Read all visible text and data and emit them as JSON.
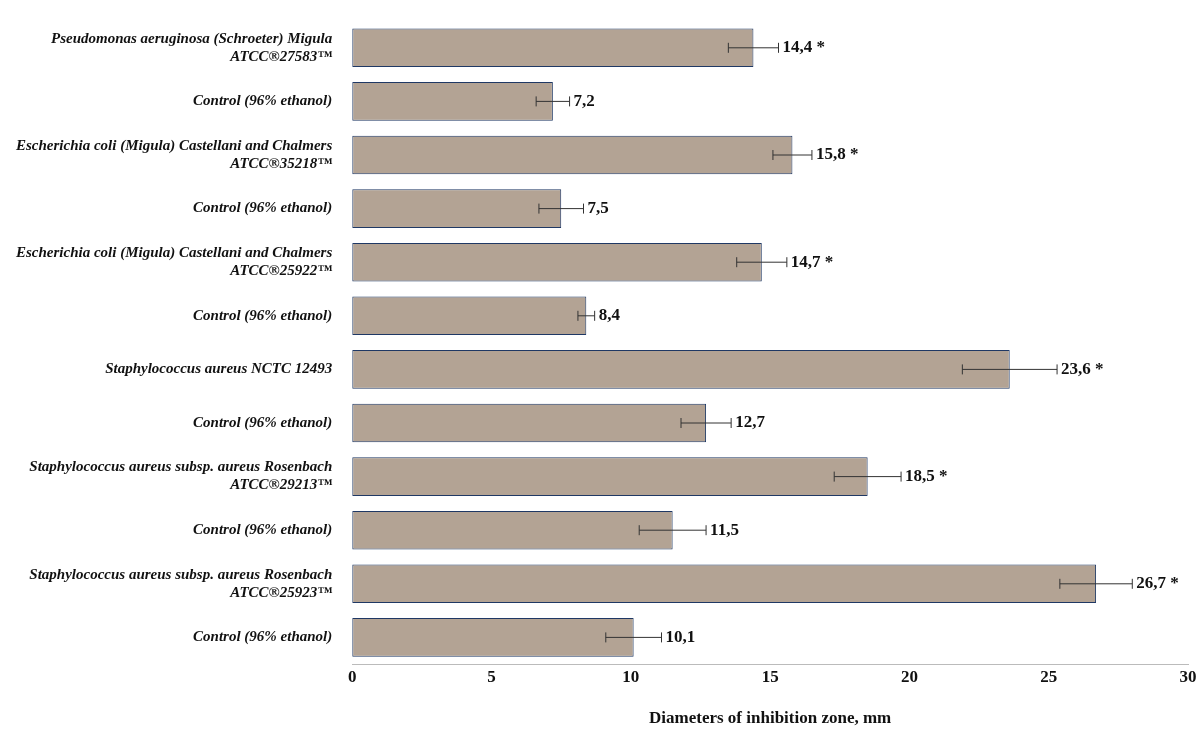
{
  "chart_data": {
    "type": "bar",
    "orientation": "horizontal",
    "xlabel": "Diameters of inhibition zone, mm",
    "categories": [
      "Pseudomonas aeruginosa (Schroeter) Migula ATCC®27583™",
      "Control (96% ethanol)",
      "Escherichia coli (Migula) Castellani and Chalmers ATCC®35218™",
      "Control (96% ethanol)",
      "Escherichia coli (Migula) Castellani and Chalmers ATCC®25922™",
      "Control (96% ethanol)",
      "Staphylococcus aureus NCTC 12493",
      "Control (96% ethanol)",
      "Staphylococcus aureus subsp. aureus Rosenbach ATCC®29213™",
      "Control (96% ethanol)",
      "Staphylococcus aureus subsp. aureus Rosenbach ATCC®25923™",
      "Control (96% ethanol)"
    ],
    "values": [
      14.4,
      7.2,
      15.8,
      7.5,
      14.7,
      8.4,
      23.6,
      12.7,
      18.5,
      11.5,
      26.7,
      10.1
    ],
    "errors": [
      0.9,
      0.6,
      0.7,
      0.8,
      0.9,
      0.3,
      1.7,
      0.9,
      1.2,
      1.2,
      1.3,
      1.0
    ],
    "value_labels": [
      "14,4 *",
      "7,2",
      "15,8 *",
      "7,5",
      "14,7 *",
      "8,4",
      "23,6 *",
      "12,7",
      "18,5 *",
      "11,5",
      "26,7 *",
      "10,1"
    ],
    "color": "#b3a394",
    "xlim": [
      0,
      30
    ],
    "xticks": [
      0,
      5,
      10,
      15,
      20,
      25,
      30
    ],
    "grid": false,
    "legend": false
  }
}
